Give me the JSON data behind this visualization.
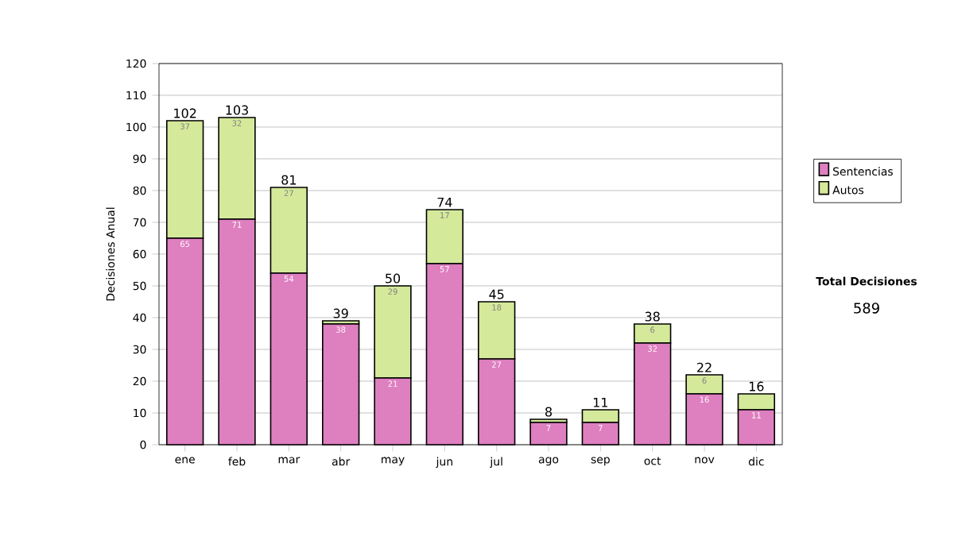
{
  "chart_data": {
    "type": "bar",
    "stacked": true,
    "ylabel": "Decisiones Anual",
    "categories": [
      "ene",
      "feb",
      "mar",
      "abr",
      "may",
      "jun",
      "jul",
      "ago",
      "sep",
      "oct",
      "nov",
      "dic"
    ],
    "series": [
      {
        "name": "Sentencias",
        "color": "#de7fc0",
        "values": [
          65,
          71,
          54,
          38,
          21,
          57,
          27,
          7,
          7,
          32,
          16,
          11
        ],
        "value_labels": [
          "65",
          "71",
          "54",
          "38",
          "21",
          "57",
          "27",
          "7",
          "7",
          "32",
          "16",
          "11"
        ]
      },
      {
        "name": "Autos",
        "color": "#d4e99a",
        "values": [
          37,
          32,
          27,
          1,
          29,
          17,
          18,
          1,
          4,
          6,
          6,
          5
        ],
        "value_labels": [
          "37",
          "32",
          "27",
          null,
          "29",
          "17",
          "18",
          null,
          null,
          "6",
          "6",
          null
        ]
      }
    ],
    "totals": [
      "102",
      "103",
      "81",
      "39",
      "50",
      "74",
      "45",
      "8",
      "11",
      "38",
      "22",
      "16"
    ],
    "ylim": [
      0,
      120
    ],
    "yticks": [
      0,
      10,
      20,
      30,
      40,
      50,
      60,
      70,
      80,
      90,
      100,
      110,
      120
    ],
    "grid": "y",
    "legend": "right",
    "annotations": [
      "Total Decisiones",
      "589"
    ]
  }
}
